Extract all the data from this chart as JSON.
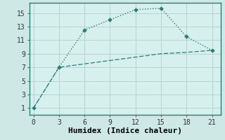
{
  "title": "",
  "xlabel": "Humidex (Indice chaleur)",
  "bg_color": "#cde8e5",
  "plot_bg_color": "#d6f0ee",
  "grid_color": "#b8d4d0",
  "spine_color": "#2e7d72",
  "line1_x": [
    0,
    3,
    6,
    9,
    12,
    15,
    18,
    21
  ],
  "line1_y": [
    1,
    7,
    12.5,
    14,
    15.5,
    15.7,
    11.5,
    9.5
  ],
  "line2_x": [
    0,
    3,
    6,
    9,
    12,
    15,
    18,
    21
  ],
  "line2_y": [
    1,
    7,
    7.5,
    8.0,
    8.5,
    9.0,
    9.2,
    9.5
  ],
  "line_color": "#2e7d72",
  "xlim": [
    -0.5,
    22
  ],
  "ylim": [
    0,
    16.5
  ],
  "xticks": [
    0,
    3,
    6,
    9,
    12,
    15,
    18,
    21
  ],
  "yticks": [
    1,
    3,
    5,
    7,
    9,
    11,
    13,
    15
  ],
  "tick_fontsize": 7,
  "xlabel_fontsize": 8
}
